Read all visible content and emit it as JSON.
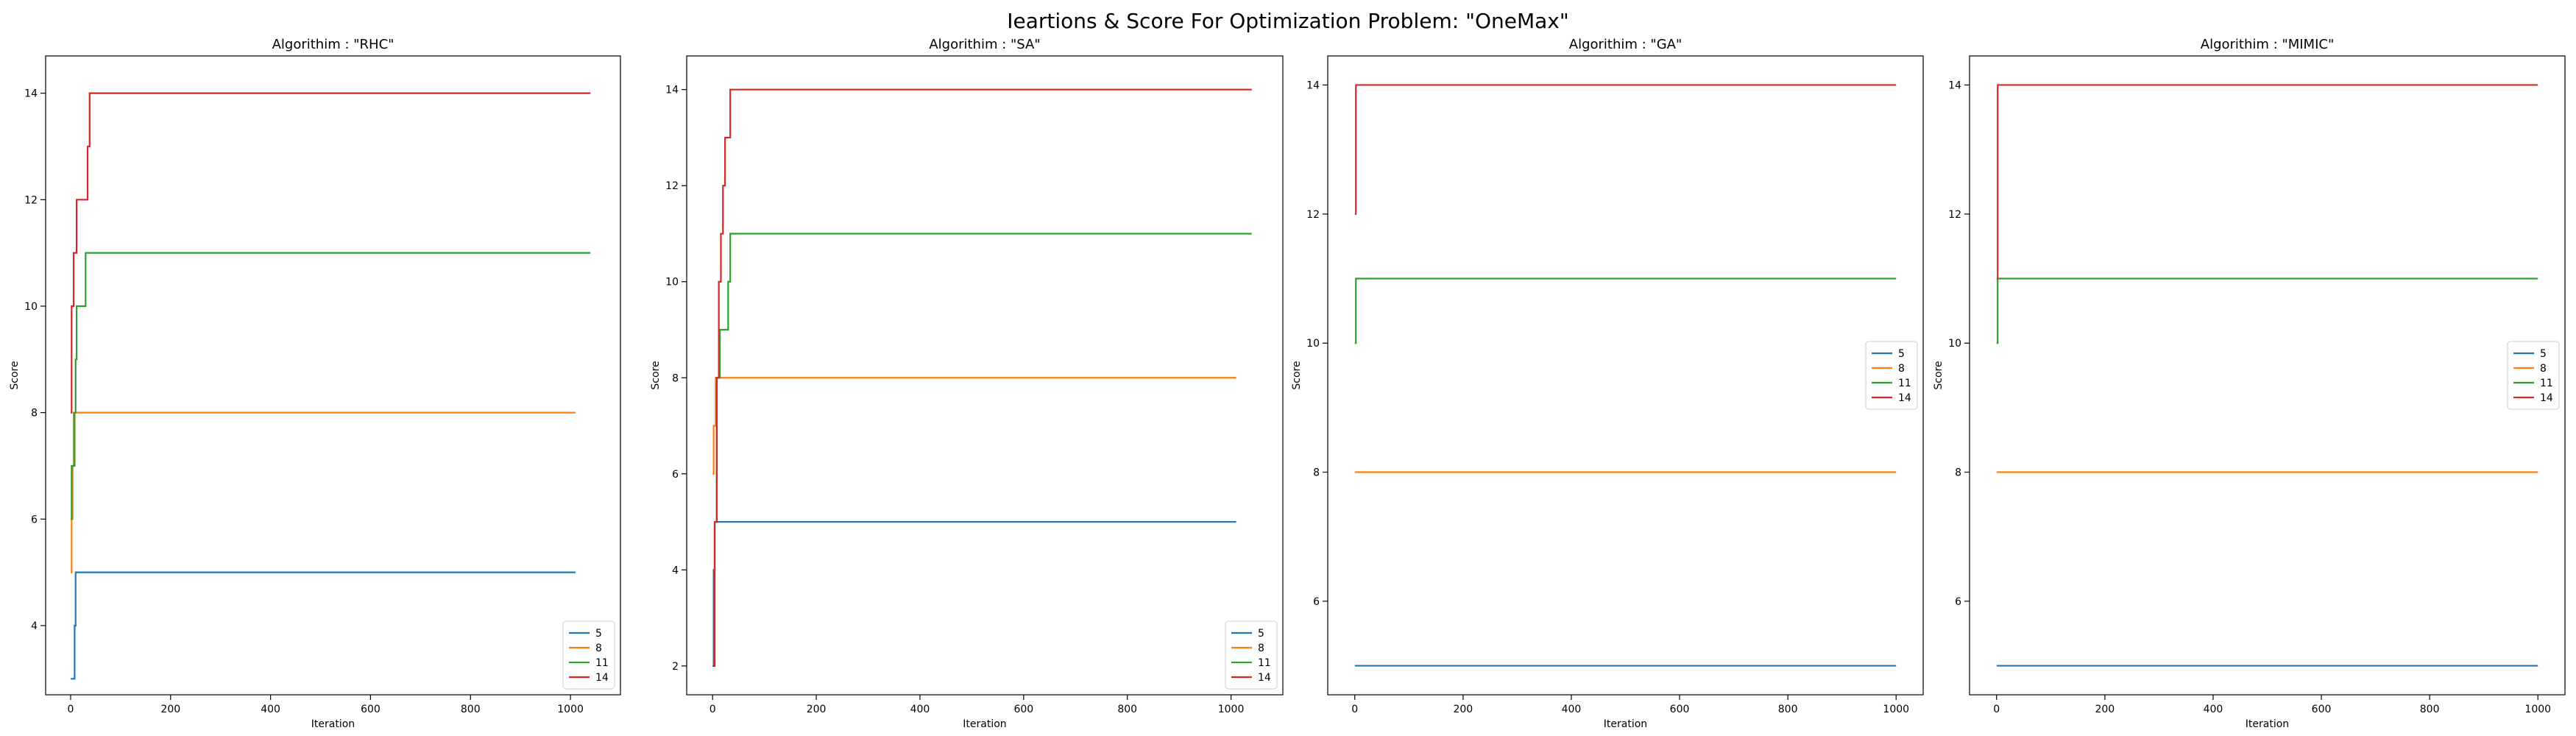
{
  "figure": {
    "title": "Ieartions & Score For Optimization Problem: \"OneMax\""
  },
  "chart_data": [
    {
      "type": "line",
      "title": "Algorithim : \"RHC\"",
      "xlabel": "Iteration",
      "ylabel": "Score",
      "xlim": [
        -50,
        1100
      ],
      "ylim": [
        2.7,
        14.7
      ],
      "xticks": [
        0,
        200,
        400,
        600,
        800,
        1000
      ],
      "yticks": [
        4,
        6,
        8,
        10,
        12,
        14
      ],
      "legend": "lower-right",
      "series": [
        {
          "name": "5",
          "color": "#1f77b4",
          "points": [
            [
              0,
              3
            ],
            [
              8,
              3
            ],
            [
              8,
              4
            ],
            [
              10,
              4
            ],
            [
              10,
              5
            ],
            [
              1010,
              5
            ]
          ]
        },
        {
          "name": "8",
          "color": "#ff7f0e",
          "points": [
            [
              0,
              5
            ],
            [
              2,
              5
            ],
            [
              2,
              6
            ],
            [
              4,
              6
            ],
            [
              4,
              7
            ],
            [
              6,
              7
            ],
            [
              6,
              8
            ],
            [
              1010,
              8
            ]
          ]
        },
        {
          "name": "11",
          "color": "#2ca02c",
          "points": [
            [
              0,
              6
            ],
            [
              2,
              6
            ],
            [
              2,
              7
            ],
            [
              8,
              7
            ],
            [
              8,
              8
            ],
            [
              10,
              8
            ],
            [
              10,
              9
            ],
            [
              12,
              9
            ],
            [
              12,
              10
            ],
            [
              30,
              10
            ],
            [
              30,
              11
            ],
            [
              1040,
              11
            ]
          ]
        },
        {
          "name": "14",
          "color": "#d62728",
          "points": [
            [
              0,
              8
            ],
            [
              2,
              8
            ],
            [
              2,
              10
            ],
            [
              6,
              10
            ],
            [
              6,
              11
            ],
            [
              12,
              11
            ],
            [
              12,
              12
            ],
            [
              34,
              12
            ],
            [
              34,
              13
            ],
            [
              38,
              13
            ],
            [
              38,
              14
            ],
            [
              1040,
              14
            ]
          ]
        }
      ]
    },
    {
      "type": "line",
      "title": "Algorithim : \"SA\"",
      "xlabel": "Iteration",
      "ylabel": "Score",
      "xlim": [
        -50,
        1100
      ],
      "ylim": [
        1.4,
        14.7
      ],
      "xticks": [
        0,
        200,
        400,
        600,
        800,
        1000
      ],
      "yticks": [
        2,
        4,
        6,
        8,
        10,
        12,
        14
      ],
      "legend": "lower-right",
      "series": [
        {
          "name": "5",
          "color": "#1f77b4",
          "points": [
            [
              0,
              2
            ],
            [
              2,
              2
            ],
            [
              2,
              4
            ],
            [
              4,
              4
            ],
            [
              4,
              5
            ],
            [
              1010,
              5
            ]
          ]
        },
        {
          "name": "8",
          "color": "#ff7f0e",
          "points": [
            [
              0,
              6
            ],
            [
              2,
              6
            ],
            [
              2,
              7
            ],
            [
              6,
              7
            ],
            [
              6,
              8
            ],
            [
              1010,
              8
            ]
          ]
        },
        {
          "name": "11",
          "color": "#2ca02c",
          "points": [
            [
              0,
              2
            ],
            [
              4,
              2
            ],
            [
              4,
              5
            ],
            [
              8,
              5
            ],
            [
              8,
              8
            ],
            [
              14,
              8
            ],
            [
              14,
              9
            ],
            [
              30,
              9
            ],
            [
              30,
              10
            ],
            [
              34,
              10
            ],
            [
              34,
              11
            ],
            [
              1040,
              11
            ]
          ]
        },
        {
          "name": "14",
          "color": "#d62728",
          "points": [
            [
              0,
              2
            ],
            [
              4,
              2
            ],
            [
              4,
              5
            ],
            [
              8,
              5
            ],
            [
              8,
              8
            ],
            [
              12,
              8
            ],
            [
              12,
              10
            ],
            [
              16,
              10
            ],
            [
              16,
              11
            ],
            [
              20,
              11
            ],
            [
              20,
              12
            ],
            [
              24,
              12
            ],
            [
              24,
              13
            ],
            [
              34,
              13
            ],
            [
              34,
              14
            ],
            [
              1040,
              14
            ]
          ]
        }
      ]
    },
    {
      "type": "line",
      "title": "Algorithim : \"GA\"",
      "xlabel": "Iteration",
      "ylabel": "Score",
      "xlim": [
        -50,
        1050
      ],
      "ylim": [
        4.55,
        14.45
      ],
      "xticks": [
        0,
        200,
        400,
        600,
        800,
        1000
      ],
      "yticks": [
        6,
        8,
        10,
        12,
        14
      ],
      "legend": "center-right",
      "series": [
        {
          "name": "5",
          "color": "#1f77b4",
          "points": [
            [
              0,
              5
            ],
            [
              1000,
              5
            ]
          ]
        },
        {
          "name": "8",
          "color": "#ff7f0e",
          "points": [
            [
              0,
              8
            ],
            [
              1000,
              8
            ]
          ]
        },
        {
          "name": "11",
          "color": "#2ca02c",
          "points": [
            [
              0,
              10
            ],
            [
              2,
              10
            ],
            [
              2,
              11
            ],
            [
              1000,
              11
            ]
          ]
        },
        {
          "name": "14",
          "color": "#d62728",
          "points": [
            [
              0,
              12
            ],
            [
              2,
              12
            ],
            [
              2,
              14
            ],
            [
              1000,
              14
            ]
          ]
        }
      ]
    },
    {
      "type": "line",
      "title": "Algorithim : \"MIMIC\"",
      "xlabel": "Iteration",
      "ylabel": "Score",
      "xlim": [
        -50,
        1050
      ],
      "ylim": [
        4.55,
        14.45
      ],
      "xticks": [
        0,
        200,
        400,
        600,
        800,
        1000
      ],
      "yticks": [
        6,
        8,
        10,
        12,
        14
      ],
      "legend": "center-right",
      "series": [
        {
          "name": "5",
          "color": "#1f77b4",
          "points": [
            [
              0,
              5
            ],
            [
              1000,
              5
            ]
          ]
        },
        {
          "name": "8",
          "color": "#ff7f0e",
          "points": [
            [
              0,
              8
            ],
            [
              1000,
              8
            ]
          ]
        },
        {
          "name": "11",
          "color": "#2ca02c",
          "points": [
            [
              0,
              10
            ],
            [
              2,
              10
            ],
            [
              2,
              11
            ],
            [
              1000,
              11
            ]
          ]
        },
        {
          "name": "14",
          "color": "#d62728",
          "points": [
            [
              0,
              11
            ],
            [
              2,
              11
            ],
            [
              2,
              14
            ],
            [
              1000,
              14
            ]
          ]
        }
      ]
    }
  ]
}
